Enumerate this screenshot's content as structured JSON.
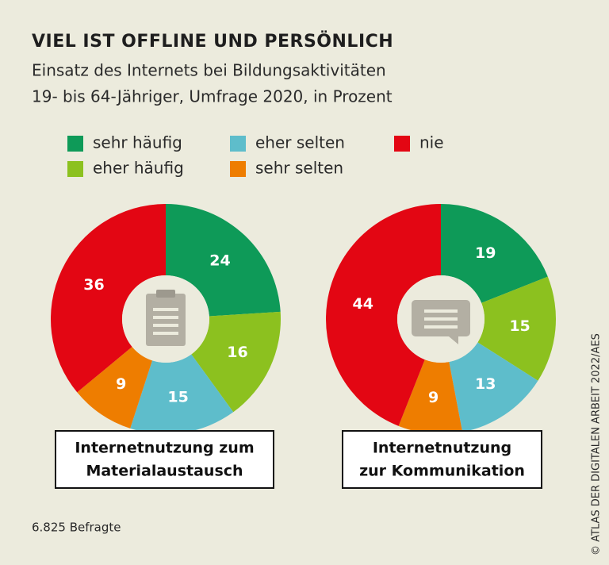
{
  "title": "VIEL IST OFFLINE UND PERSÖNLICH",
  "subtitle": [
    "Einsatz des Internets bei Bildungsaktivitäten",
    "19- bis 64-Jähriger, Umfrage 2020, in Prozent"
  ],
  "note": "6.825 Befragte",
  "source": "© ATLAS DER DIGITALEN ARBEIT 2022/AES",
  "chart_data": [
    {
      "type": "pie",
      "title": [
        "Internetnutzung zum",
        "Materialaustausch"
      ],
      "categories": [
        "sehr häufig",
        "eher häufig",
        "eher selten",
        "sehr selten",
        "nie"
      ],
      "values": [
        24,
        16,
        15,
        9,
        36
      ],
      "colors": [
        "#0e9a58",
        "#8cc11f",
        "#5ebdcb",
        "#ee7d00",
        "#e30613"
      ]
    },
    {
      "type": "pie",
      "title": [
        "Internetnutzung",
        "zur Kommunikation"
      ],
      "categories": [
        "sehr häufig",
        "eher häufig",
        "eher selten",
        "sehr selten",
        "nie"
      ],
      "values": [
        19,
        15,
        13,
        9,
        44
      ],
      "colors": [
        "#0e9a58",
        "#8cc11f",
        "#5ebdcb",
        "#ee7d00",
        "#e30613"
      ]
    }
  ]
}
